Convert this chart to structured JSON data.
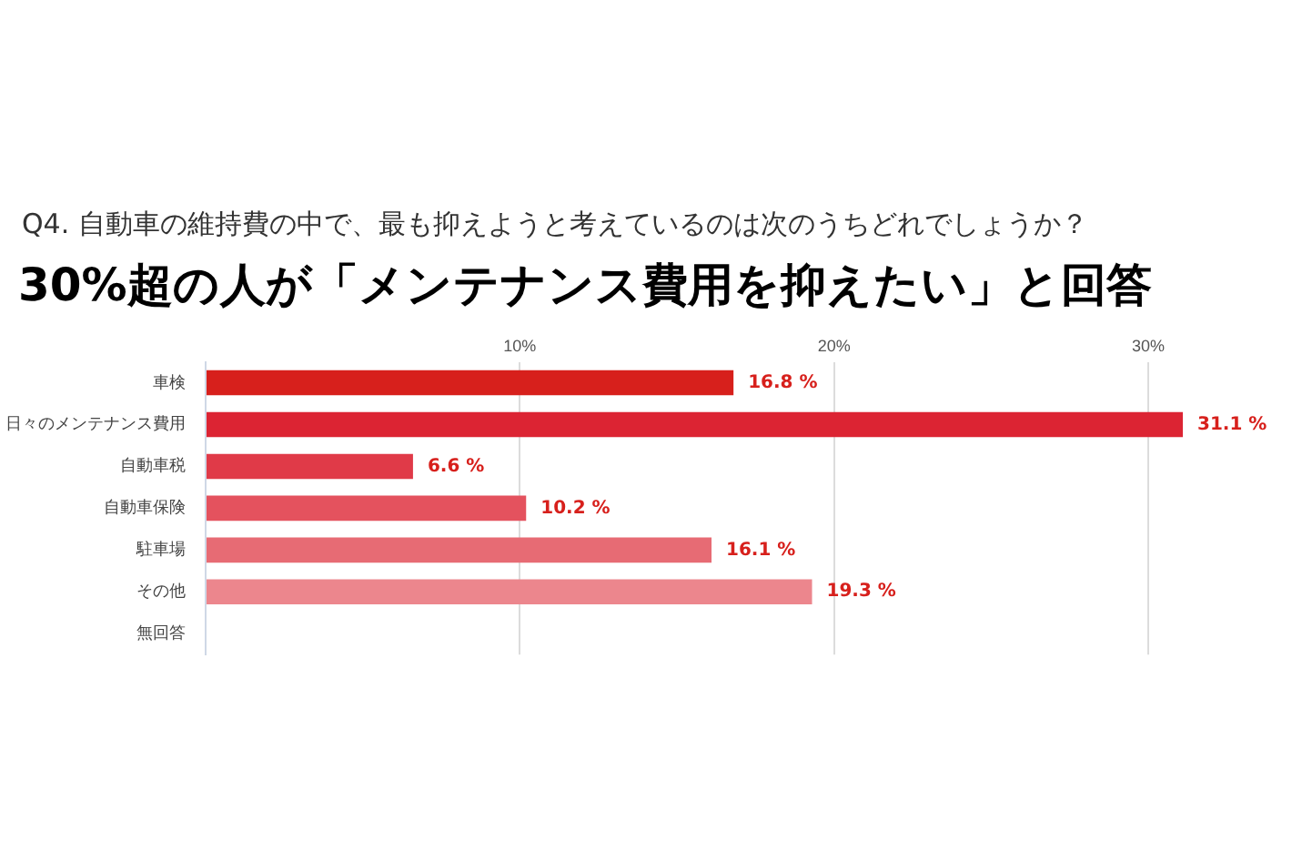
{
  "chart_data": {
    "type": "bar",
    "orientation": "horizontal",
    "subtitle": "Q4. 自動車の維持費の中で、最も抑えようと考えているのは次のうちどれでしょうか？",
    "title": "30%超の人が「メンテナンス費用を抑えたい」と回答",
    "categories": [
      "車検",
      "日々のメンテナンス費用",
      "自動車税",
      "自動車保険",
      "駐車場",
      "その他",
      "無回答"
    ],
    "values": [
      16.8,
      31.1,
      6.6,
      10.2,
      16.1,
      19.3,
      null
    ],
    "value_labels": [
      "16.8 %",
      "31.1 %",
      "6.6 %",
      "10.2 %",
      "16.1 %",
      "19.3 %",
      null
    ],
    "colors": [
      "#d7201c",
      "#dc2433",
      "#e03a48",
      "#e4525e",
      "#e76b74",
      "#ec868d",
      "#ec868d"
    ],
    "xlim": [
      0,
      31.1
    ],
    "xticks": [
      {
        "value": 0,
        "label": null
      },
      {
        "value": 10,
        "label": "10%"
      },
      {
        "value": 20,
        "label": "20%"
      },
      {
        "value": 30,
        "label": "30%"
      }
    ],
    "grid": "x",
    "legend": false
  }
}
